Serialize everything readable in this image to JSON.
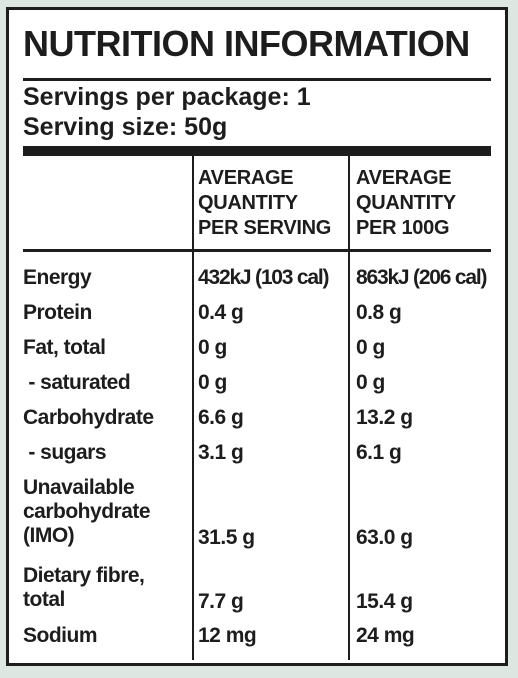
{
  "title": "NUTRITION INFORMATION",
  "servings_per_package": "Servings per package: 1",
  "serving_size": "Serving size: 50g",
  "headers": {
    "per_serving": [
      "AVERAGE",
      "QUANTITY",
      "PER SERVING"
    ],
    "per_100g": [
      "AVERAGE",
      "QUANTITY",
      "PER 100G"
    ]
  },
  "rows": [
    {
      "label": [
        "Energy"
      ],
      "per_serving": "432kJ (103 cal)",
      "per_100g": "863kJ (206 cal)"
    },
    {
      "label": [
        "Protein"
      ],
      "per_serving": "0.4 g",
      "per_100g": "0.8 g"
    },
    {
      "label": [
        "Fat, total"
      ],
      "per_serving": "0 g",
      "per_100g": "0 g"
    },
    {
      "label": [
        " - saturated"
      ],
      "per_serving": "0 g",
      "per_100g": "0 g"
    },
    {
      "label": [
        "Carbohydrate"
      ],
      "per_serving": "6.6 g",
      "per_100g": "13.2 g"
    },
    {
      "label": [
        " - sugars"
      ],
      "per_serving": "3.1 g",
      "per_100g": "6.1 g"
    },
    {
      "label": [
        "Unavailable",
        "carbohydrate",
        "(IMO)"
      ],
      "per_serving": "31.5 g",
      "per_100g": "63.0 g"
    },
    {
      "label": [
        "Dietary fibre,",
        "total"
      ],
      "per_serving": "7.7 g",
      "per_100g": "15.4 g"
    },
    {
      "label": [
        "Sodium"
      ],
      "per_serving": "12 mg",
      "per_100g": "24 mg"
    }
  ]
}
